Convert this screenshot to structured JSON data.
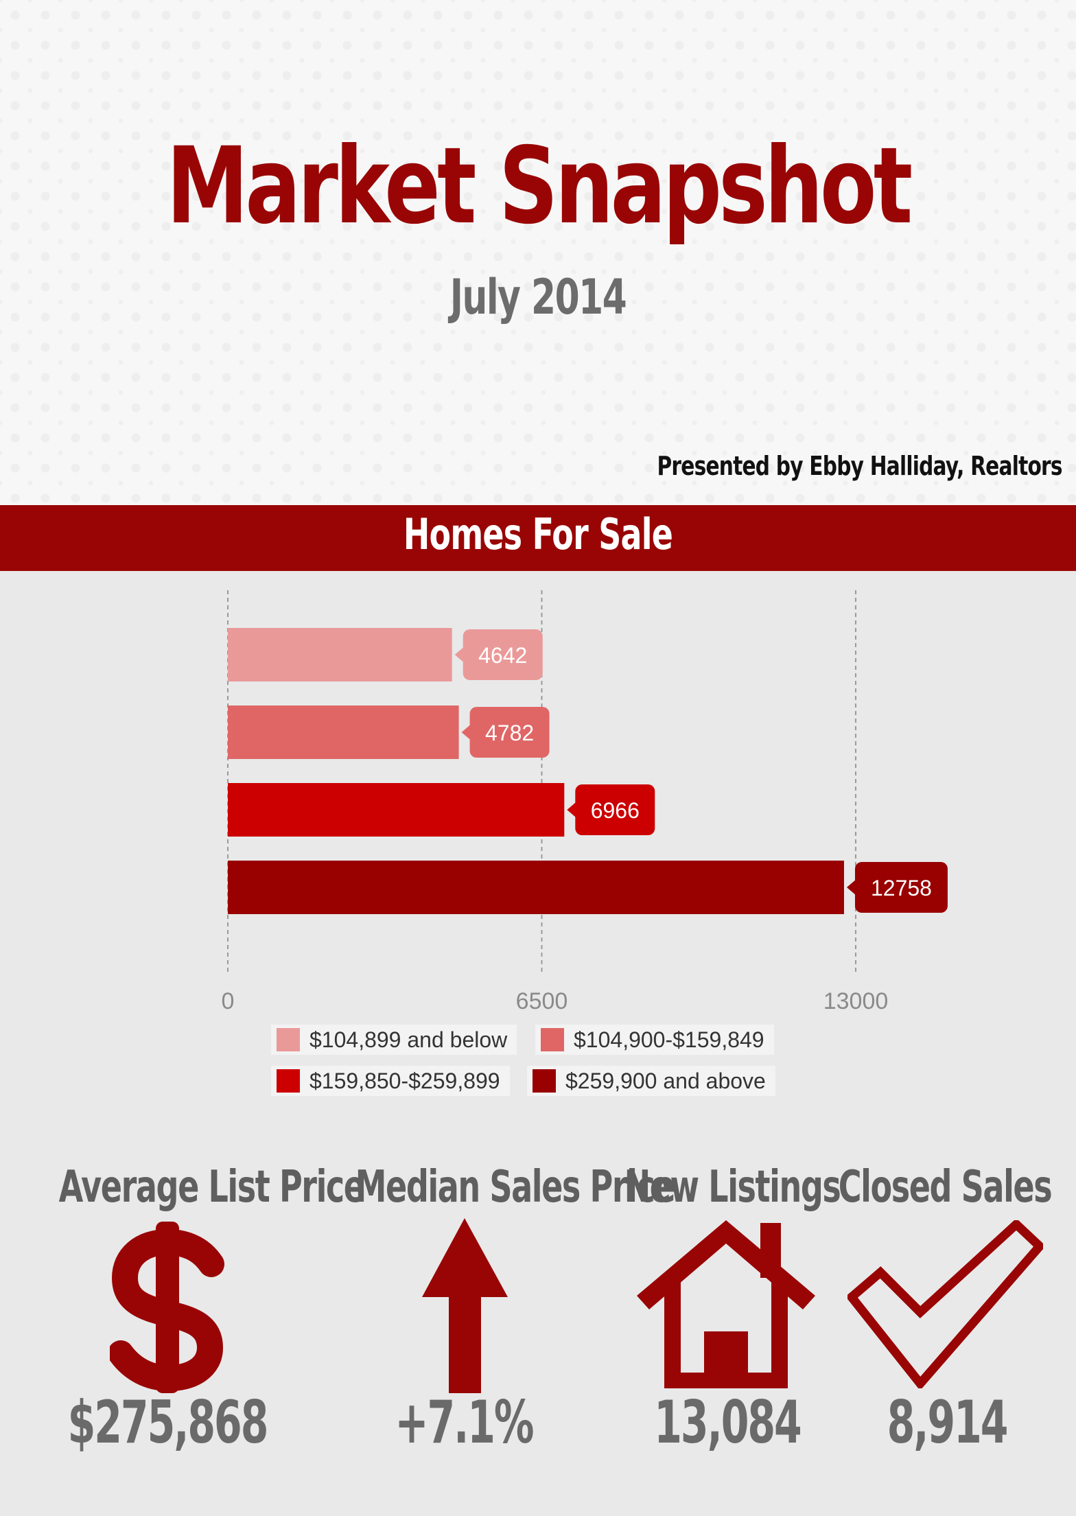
{
  "header": {
    "title": "Market Snapshot",
    "subtitle": "July 2014",
    "presented_by": "Presented by Ebby Halliday, Realtors"
  },
  "banner": {
    "title": "Homes For Sale"
  },
  "chart_data": {
    "type": "bar",
    "orientation": "horizontal",
    "series": [
      {
        "name": "$104,899 and below",
        "value": 4642,
        "color": "#ea9999"
      },
      {
        "name": "$104,900-$159,849",
        "value": 4782,
        "color": "#e06666"
      },
      {
        "name": "$159,850-$259,899",
        "value": 6966,
        "color": "#cc0000"
      },
      {
        "name": "$259,900 and above",
        "value": 12758,
        "color": "#990000"
      }
    ],
    "x_ticks": [
      "0",
      "6500",
      "13000"
    ],
    "xlim": [
      0,
      13000
    ],
    "grid": true,
    "legend": "bottom",
    "data_labels": true
  },
  "stats": [
    {
      "label": "Average List Price",
      "value": "$275,868",
      "icon": "dollar-icon"
    },
    {
      "label": "Median Sales Price",
      "value": "+7.1%",
      "icon": "arrow-up-icon"
    },
    {
      "label": "New Listings",
      "value": "13,084",
      "icon": "house-icon"
    },
    {
      "label": "Closed Sales",
      "value": "8,914",
      "icon": "checkmark-icon"
    }
  ],
  "colors": {
    "accent": "#990505",
    "text_gray": "#6a6a6a"
  }
}
